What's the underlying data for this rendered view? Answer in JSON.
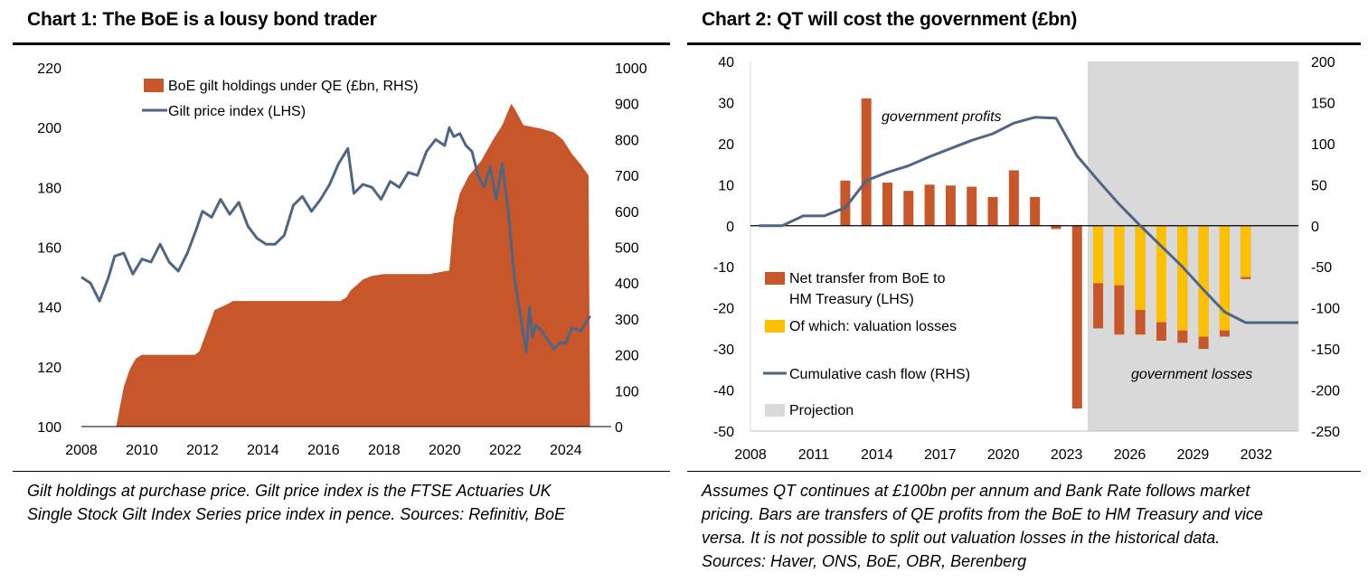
{
  "charts": [
    {
      "title": "Chart 1: The BoE is a lousy bond trader",
      "note_lines": [
        "Gilt holdings at purchase price. Gilt price index is the FTSE Actuaries UK",
        "Single Stock Gilt Index Series price index in pence. Sources: Refinitiv, BoE"
      ],
      "colors": {
        "area": "#c8562b",
        "line": "#4e6686"
      }
    },
    {
      "title": "Chart 2: QT will cost the government (£bn)",
      "note_lines": [
        "Assumes QT continues at £100bn per annum and Bank Rate follows market",
        "pricing. Bars are transfers of QE profits from the BoE to HM Treasury and vice",
        "versa. It is not possible to split out valuation losses in the historical data.",
        "Sources: Haver, ONS, BoE, OBR, Berenberg"
      ],
      "colors": {
        "bar": "#c8562b",
        "valuation": "#ffc000",
        "line": "#4e6686",
        "projection": "#d9d9d9"
      }
    }
  ],
  "chart_data": [
    {
      "type": "area+line",
      "x_ticks": [
        "2008",
        "2010",
        "2012",
        "2014",
        "2016",
        "2018",
        "2020",
        "2022",
        "2024"
      ],
      "xlim": [
        2008,
        2025.5
      ],
      "y_left_ticks": [
        "100",
        "120",
        "140",
        "160",
        "180",
        "200",
        "220"
      ],
      "ylim_left": [
        100,
        220
      ],
      "y_right_ticks": [
        "0",
        "100",
        "200",
        "300",
        "400",
        "500",
        "600",
        "700",
        "800",
        "900",
        "1000"
      ],
      "ylim_right": [
        0,
        1000
      ],
      "legend": [
        "BoE gilt holdings under QE (£bn, RHS)",
        "Gilt price index (LHS)"
      ],
      "series": [
        {
          "name": "BoE gilt holdings under QE (£bn, RHS)",
          "axis": "right",
          "kind": "area",
          "x": [
            2009.15,
            2009.4,
            2009.6,
            2009.8,
            2010.0,
            2010.3,
            2011.75,
            2011.9,
            2012.25,
            2012.4,
            2012.8,
            2013.0,
            2016.55,
            2016.75,
            2016.9,
            2017.1,
            2017.3,
            2017.6,
            2018.0,
            2019.5,
            2020.15,
            2020.3,
            2020.5,
            2020.8,
            2021.2,
            2021.6,
            2021.9,
            2022.1,
            2022.2,
            2022.35,
            2022.6,
            2022.9,
            2023.2,
            2023.6,
            2023.9,
            2024.2,
            2024.5,
            2024.75,
            2024.8
          ],
          "y": [
            0,
            110,
            160,
            190,
            200,
            200,
            200,
            210,
            290,
            325,
            340,
            350,
            350,
            360,
            380,
            395,
            410,
            420,
            425,
            425,
            435,
            580,
            650,
            700,
            740,
            800,
            840,
            880,
            900,
            880,
            840,
            835,
            830,
            820,
            800,
            760,
            730,
            700,
            40
          ]
        },
        {
          "name": "Gilt price index (LHS)",
          "axis": "left",
          "kind": "line",
          "x": [
            2008.0,
            2008.3,
            2008.6,
            2008.9,
            2009.1,
            2009.4,
            2009.7,
            2010.0,
            2010.3,
            2010.6,
            2010.9,
            2011.2,
            2011.5,
            2011.8,
            2012.0,
            2012.3,
            2012.6,
            2012.9,
            2013.2,
            2013.5,
            2013.8,
            2014.1,
            2014.4,
            2014.7,
            2015.0,
            2015.3,
            2015.6,
            2015.9,
            2016.2,
            2016.5,
            2016.8,
            2017.0,
            2017.3,
            2017.6,
            2017.9,
            2018.2,
            2018.5,
            2018.8,
            2019.1,
            2019.4,
            2019.7,
            2020.0,
            2020.15,
            2020.3,
            2020.5,
            2020.7,
            2020.9,
            2021.1,
            2021.3,
            2021.5,
            2021.7,
            2021.9,
            2022.1,
            2022.3,
            2022.5,
            2022.7,
            2022.8,
            2022.9,
            2023.0,
            2023.2,
            2023.4,
            2023.6,
            2023.8,
            2024.0,
            2024.2,
            2024.5,
            2024.8
          ],
          "y": [
            150,
            148,
            142,
            150,
            157,
            158,
            151,
            156,
            155,
            161,
            155,
            152,
            158,
            166,
            172,
            170,
            176,
            171,
            175,
            167,
            163,
            161,
            161,
            164,
            174,
            177,
            172,
            176,
            181,
            188,
            193,
            178,
            181,
            180,
            176,
            182,
            180,
            185,
            184,
            192,
            196,
            194,
            200,
            197,
            198,
            194,
            192,
            184,
            180,
            187,
            176,
            188,
            172,
            150,
            137,
            125,
            140,
            130,
            134,
            132,
            129,
            126,
            128,
            128,
            133,
            132,
            137
          ]
        }
      ]
    },
    {
      "type": "bar+line",
      "categories": [
        "2008",
        "2009",
        "2010",
        "2011",
        "2012",
        "2013",
        "2014",
        "2015",
        "2016",
        "2017",
        "2018",
        "2019",
        "2020",
        "2021",
        "2022",
        "2023",
        "2024",
        "2025",
        "2026",
        "2027",
        "2028",
        "2029",
        "2030",
        "2031",
        "2032",
        "2033"
      ],
      "x_ticks": [
        "2008",
        "2011",
        "2014",
        "2017",
        "2020",
        "2023",
        "2026",
        "2029",
        "2032"
      ],
      "y_left_ticks": [
        "40",
        "30",
        "20",
        "10",
        "0",
        "-10",
        "-20",
        "-30",
        "-40",
        "-50"
      ],
      "ylim_left": [
        -50,
        40
      ],
      "y_right_ticks": [
        "200",
        "150",
        "100",
        "50",
        "0",
        "-50",
        "-100",
        "-150",
        "-200",
        "-250"
      ],
      "ylim_right": [
        -250,
        200
      ],
      "series": [
        {
          "name": "Net transfer from BoE to HM Treasury (LHS)",
          "axis": "left",
          "kind": "bar",
          "values": [
            0,
            0,
            0,
            0,
            11,
            31,
            10.5,
            8.5,
            10,
            9.8,
            9.5,
            7,
            13.5,
            7,
            -0.8,
            -44.5,
            -25,
            -26.5,
            -26.5,
            -28,
            -28.5,
            -30,
            -27,
            -13,
            null,
            null
          ]
        },
        {
          "name": "Of which: valuation losses",
          "axis": "left",
          "kind": "bar",
          "values": [
            null,
            null,
            null,
            null,
            null,
            null,
            null,
            null,
            null,
            null,
            null,
            null,
            null,
            null,
            null,
            null,
            -14,
            -14.5,
            -20.5,
            -23.5,
            -25.5,
            -27,
            -25.5,
            -12.5,
            null,
            null
          ]
        },
        {
          "name": "Cumulative cash flow (RHS)",
          "axis": "right",
          "kind": "line",
          "values": [
            0,
            0,
            12,
            12,
            22,
            55,
            65,
            73,
            84,
            94,
            104,
            112,
            125,
            132,
            131,
            85,
            55,
            26,
            0,
            -25,
            -50,
            -78,
            -105,
            -118,
            -118,
            -118
          ]
        }
      ],
      "projection_start": "2024",
      "legend": [
        "Net transfer from BoE to HM Treasury (LHS)",
        "Of which: valuation losses",
        "Cumulative cash flow (RHS)",
        "Projection"
      ],
      "annotations": [
        "government profits",
        "government losses"
      ]
    }
  ]
}
